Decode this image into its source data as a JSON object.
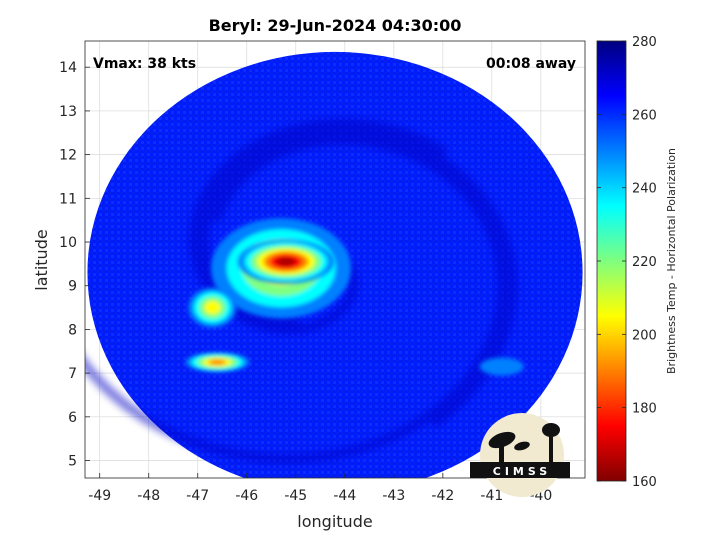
{
  "chart_data": {
    "type": "heatmap",
    "title": "Beryl: 29-Jun-2024 04:30:00",
    "xlabel": "longitude",
    "ylabel": "latitude",
    "colorbar_label": "Brightness Temp - Horizontal Polarization",
    "xlim": [
      -49.3,
      -39.1
    ],
    "ylim": [
      4.6,
      14.6
    ],
    "x_ticks": [
      -49,
      -48,
      -47,
      -46,
      -45,
      -44,
      -43,
      -42,
      -41,
      -40
    ],
    "y_ticks": [
      5,
      6,
      7,
      8,
      9,
      10,
      11,
      12,
      13,
      14
    ],
    "colorbar_range": [
      160,
      280
    ],
    "colorbar_ticks": [
      160,
      180,
      200,
      220,
      240,
      260,
      280
    ],
    "grid": true,
    "swath": {
      "center_lon": -44.2,
      "center_lat": 9.3,
      "radius_deg": 5.05
    },
    "annotations": {
      "vmax": "Vmax: 38 kts",
      "time_offset": "00:08 away"
    },
    "logo_text": "CIMSS",
    "features": [
      {
        "name": "core",
        "lon": -45.2,
        "lat": 9.55,
        "min_temp": 165
      },
      {
        "name": "inner-band",
        "lon": -45.3,
        "lat": 9.4,
        "min_temp": 200
      },
      {
        "name": "west-cell",
        "lon": -46.7,
        "lat": 8.5,
        "min_temp": 205
      },
      {
        "name": "southwest-cell",
        "lon": -46.6,
        "lat": 7.25,
        "min_temp": 190
      },
      {
        "name": "east-cell",
        "lon": -40.8,
        "lat": 7.15,
        "min_temp": 240
      }
    ],
    "background_temp": 262
  }
}
